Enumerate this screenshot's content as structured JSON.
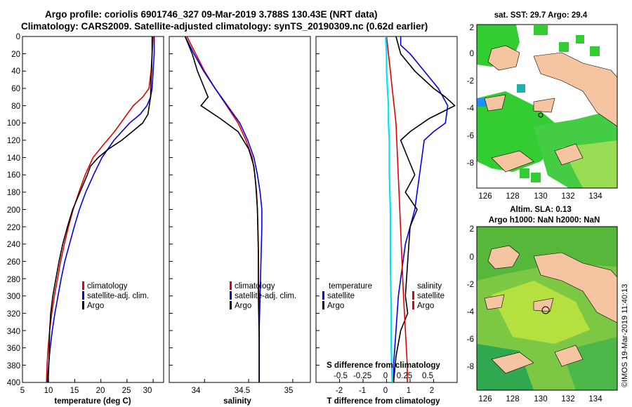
{
  "titles": {
    "line1": "Argo profile: coriolis 6901746_327 09-Mar-2019 3.788S 130.43E (NRT data)",
    "line2": "Climatology: CARS2009. Satellite-adjusted climatology: synTS_20190309.nc (0.62d earlier)"
  },
  "colors": {
    "climatology": "#e00000",
    "satellite": "#0000e6",
    "argo": "#000000",
    "s_diff": "#00e0ff"
  },
  "depth_axis": {
    "ticks": [
      "0",
      "20",
      "40",
      "60",
      "80",
      "100",
      "120",
      "140",
      "160",
      "180",
      "200",
      "220",
      "240",
      "260",
      "280",
      "300",
      "320",
      "340",
      "360",
      "380",
      "400"
    ]
  },
  "chart_data": [
    {
      "type": "line",
      "name": "temperature",
      "xlabel": "temperature (deg C)",
      "ylabel": "depth",
      "xlim": [
        5,
        32
      ],
      "ylim": [
        400,
        0
      ],
      "xticks": [
        5,
        10,
        15,
        20,
        25,
        30
      ],
      "xtick_labels": [
        "5",
        "10",
        "15",
        "20",
        "25",
        "30"
      ],
      "legend": {
        "position": "lower-right",
        "items": [
          "climatology",
          "satellite-adj. clim.",
          "Argo"
        ]
      },
      "series": [
        {
          "name": "climatology",
          "color": "#e00000",
          "x": [
            30.0,
            29.8,
            29.6,
            29.4,
            29.2,
            28.0,
            26.2,
            25.0,
            22.6,
            20.5,
            18.5,
            17.0,
            15.8,
            14.7,
            13.8,
            13.0,
            12.3,
            11.7,
            11.1,
            10.6,
            10.2,
            9.9,
            9.7,
            9.6
          ],
          "y": [
            0,
            20,
            40,
            50,
            60,
            70,
            80,
            90,
            110,
            125,
            140,
            160,
            180,
            200,
            220,
            240,
            260,
            280,
            300,
            320,
            340,
            360,
            380,
            400
          ]
        },
        {
          "name": "satellite-adj. clim.",
          "color": "#0000e6",
          "x": [
            30.2,
            30.2,
            30.0,
            29.8,
            29.5,
            28.8,
            27.5,
            25.5,
            22.5,
            20.2,
            18.6,
            17.1,
            15.9,
            14.9,
            14.0,
            13.1,
            12.4,
            11.8,
            11.2,
            10.7,
            10.3,
            10.0,
            9.8,
            9.7
          ],
          "y": [
            0,
            20,
            40,
            60,
            70,
            80,
            90,
            100,
            120,
            140,
            160,
            180,
            200,
            220,
            240,
            260,
            280,
            300,
            320,
            340,
            360,
            380,
            395,
            400
          ]
        },
        {
          "name": "Argo",
          "color": "#000000",
          "x": [
            29.8,
            29.8,
            29.7,
            29.6,
            29.5,
            29.0,
            28.0,
            26.0,
            24.0,
            21.5,
            19.5,
            18.0,
            17.4,
            16.0,
            14.6,
            13.6,
            12.7,
            12.0,
            11.4,
            10.8,
            10.4,
            10.2,
            10.1,
            9.9
          ],
          "y": [
            0,
            20,
            40,
            50,
            70,
            90,
            100,
            110,
            120,
            130,
            140,
            150,
            160,
            180,
            200,
            220,
            240,
            260,
            280,
            300,
            320,
            340,
            370,
            400
          ]
        }
      ]
    },
    {
      "type": "line",
      "name": "salinity",
      "xlabel": "salinity",
      "ylabel": "depth",
      "xlim": [
        33.6,
        35.2
      ],
      "ylim": [
        400,
        0
      ],
      "xticks": [
        34,
        34.5,
        35
      ],
      "xtick_labels": [
        "34",
        "34.5",
        "35"
      ],
      "legend": {
        "position": "lower-right",
        "items": [
          "climatology",
          "satellite-adj. clim.",
          "Argo"
        ]
      },
      "series": [
        {
          "name": "climatology",
          "color": "#e00000",
          "x": [
            33.8,
            33.9,
            34.0,
            34.12,
            34.25,
            34.38,
            34.47,
            34.54,
            34.57,
            34.59,
            34.6,
            34.61,
            34.61,
            34.62,
            34.62,
            34.62,
            34.62,
            34.62
          ],
          "y": [
            0,
            20,
            40,
            60,
            80,
            100,
            120,
            140,
            160,
            180,
            200,
            240,
            280,
            300,
            320,
            350,
            380,
            400
          ]
        },
        {
          "name": "satellite-adj. clim.",
          "color": "#0000e6",
          "x": [
            33.78,
            33.88,
            33.99,
            34.12,
            34.26,
            34.4,
            34.49,
            34.56,
            34.6,
            34.63,
            34.65,
            34.65,
            34.64,
            34.63,
            34.62,
            34.62,
            34.62
          ],
          "y": [
            0,
            20,
            40,
            60,
            80,
            100,
            120,
            140,
            160,
            180,
            200,
            220,
            260,
            300,
            340,
            380,
            400
          ]
        },
        {
          "name": "Argo",
          "color": "#000000",
          "x": [
            33.78,
            33.86,
            33.92,
            33.98,
            34.04,
            33.96,
            34.18,
            34.38,
            34.5,
            34.56,
            34.58,
            34.6,
            34.61,
            34.61,
            34.62,
            34.62
          ],
          "y": [
            0,
            20,
            40,
            55,
            70,
            80,
            95,
            110,
            130,
            150,
            170,
            200,
            250,
            300,
            350,
            400
          ]
        }
      ]
    },
    {
      "type": "line",
      "name": "difference",
      "xlabel": "T difference from climatology",
      "ylabel": "depth",
      "xlim": [
        -3,
        3
      ],
      "ylim": [
        400,
        0
      ],
      "xticks": [
        -2,
        -1,
        0,
        1,
        2
      ],
      "xtick_labels": [
        "-2",
        "-1",
        "0",
        "1",
        "2"
      ],
      "secondary_xlabel": "S difference from climatology",
      "secondary_xlim": [
        -0.75,
        0.75
      ],
      "secondary_xticks": [
        -0.5,
        -0.25,
        0,
        0.25,
        0.5
      ],
      "secondary_xtick_labels": [
        "-0.5",
        "-0.25",
        "0",
        "0.25",
        "0.5"
      ],
      "legend": {
        "position": "lower-center",
        "temperature_header": "temperature",
        "salinity_header": "salinity",
        "items": [
          "satellite",
          "Argo"
        ]
      },
      "series": [
        {
          "name": "T satellite",
          "color": "#0000e6",
          "axis": "T",
          "x": [
            0.6,
            0.6,
            1.0,
            1.6,
            2.2,
            2.6,
            2.5,
            2.0,
            1.6,
            1.5,
            1.4,
            1.3,
            1.2,
            1.0,
            0.8,
            0.7,
            0.6,
            0.5,
            0.4,
            0.3,
            0.3
          ],
          "y": [
            0,
            10,
            20,
            40,
            60,
            80,
            100,
            110,
            120,
            140,
            160,
            180,
            200,
            220,
            240,
            260,
            280,
            300,
            340,
            380,
            400
          ]
        },
        {
          "name": "T Argo",
          "color": "#000000",
          "axis": "T",
          "x": [
            0.4,
            0.6,
            1.2,
            2.0,
            2.5,
            2.9,
            1.8,
            1.0,
            0.6,
            0.9,
            1.2,
            0.8,
            1.3,
            1.0,
            0.9,
            0.8,
            0.9,
            0.6,
            0.4,
            0.3
          ],
          "y": [
            0,
            20,
            40,
            60,
            70,
            80,
            95,
            110,
            120,
            140,
            160,
            180,
            200,
            220,
            260,
            300,
            320,
            340,
            370,
            400
          ]
        },
        {
          "name": "S satellite",
          "color": "#e00000",
          "axis": "S",
          "x": [
            0.0,
            0.02,
            0.04,
            0.06,
            0.08,
            0.1,
            0.12,
            0.14,
            0.16,
            0.18,
            0.2,
            0.22,
            0.22
          ],
          "y": [
            0,
            20,
            40,
            60,
            80,
            100,
            150,
            200,
            250,
            300,
            340,
            380,
            400
          ]
        },
        {
          "name": "S difference",
          "color": "#00e0ff",
          "axis": "S",
          "x": [
            -0.01,
            0.0,
            0.0,
            0.01,
            0.02,
            0.02,
            0.03,
            0.03,
            0.04,
            0.04,
            0.05,
            0.05,
            0.06
          ],
          "y": [
            0,
            20,
            40,
            60,
            80,
            100,
            120,
            160,
            200,
            260,
            320,
            360,
            400
          ]
        }
      ]
    }
  ],
  "maps": {
    "top": {
      "title": "sat. SST: 29.7 Argo: 29.4",
      "xticks": [
        "126",
        "128",
        "130",
        "132",
        "134"
      ],
      "yticks": [
        "2",
        "0",
        "-2",
        "-4",
        "-6",
        "-8"
      ]
    },
    "bottom": {
      "title_line1": "Altim. SLA: 0.13",
      "title_line2": "Argo h1000: NaN h2000: NaN",
      "xticks": [
        "126",
        "128",
        "130",
        "132",
        "134"
      ],
      "yticks": [
        "2",
        "0",
        "-2",
        "-4",
        "-6",
        "-8"
      ]
    },
    "side_credit": "©IMOS 19-Mar-2019 11:40:13"
  }
}
